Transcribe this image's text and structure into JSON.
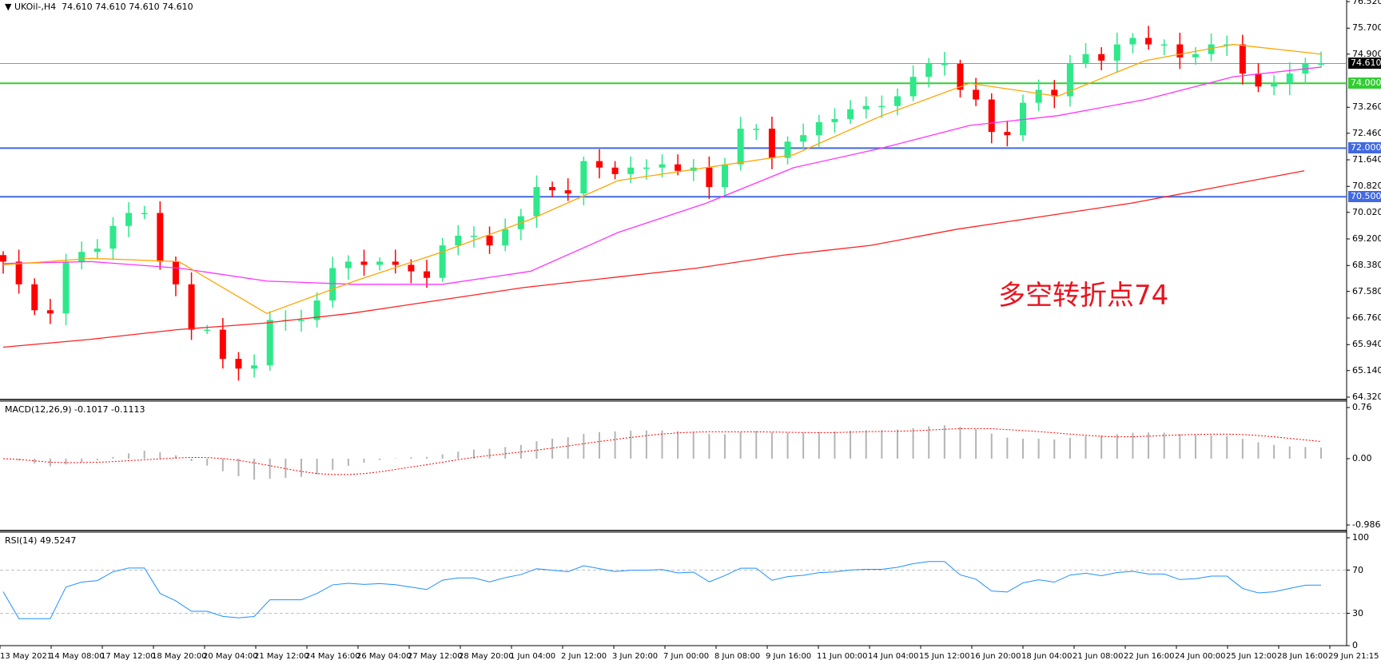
{
  "header": {
    "symbol": "UKOil-,H4",
    "ohlc": "74.610 74.610 74.610 74.610"
  },
  "annotation": "多空转折点74",
  "colors": {
    "bull": "#2ee88a",
    "bear": "#ff0000",
    "ma_fast": "#ffa500",
    "ma_mid": "#ff33ff",
    "ma_slow": "#ff2020",
    "level_green": "#32cd32",
    "level_blue": "#4169e1",
    "current": "#8899aa",
    "macd_hist": "#b4b4b4",
    "macd_signal": "#ff0000",
    "rsi": "#1e90ff"
  },
  "chart_data": [
    {
      "type": "candlestick",
      "title": "UKOil-,H4",
      "ylim": [
        64.32,
        76.52
      ],
      "y_ticks": [
        "76.520",
        "75.700",
        "74.900",
        "73.260",
        "72.460",
        "71.640",
        "70.820",
        "70.020",
        "69.200",
        "68.380",
        "67.580",
        "66.760",
        "65.940",
        "65.140",
        "64.320"
      ],
      "x_ticks": [
        "13 May 2021",
        "14 May 08:00",
        "17 May 12:00",
        "18 May 20:00",
        "20 May 04:00",
        "21 May 12:00",
        "24 May 16:00",
        "26 May 04:00",
        "27 May 12:00",
        "28 May 20:00",
        "1 Jun 04:00",
        "2 Jun 12:00",
        "3 Jun 20:00",
        "7 Jun 00:00",
        "8 Jun 08:00",
        "9 Jun 16:00",
        "11 Jun 00:00",
        "14 Jun 04:00",
        "15 Jun 12:00",
        "16 Jun 20:00",
        "18 Jun 04:00",
        "21 Jun 08:00",
        "22 Jun 16:00",
        "24 Jun 00:00",
        "25 Jun 12:00",
        "28 Jun 16:00",
        "29 Jun 21:15"
      ],
      "close": [
        68.5,
        67.8,
        67.0,
        66.9,
        68.5,
        68.8,
        68.9,
        69.6,
        70.0,
        70.0,
        68.5,
        67.8,
        66.4,
        66.4,
        65.5,
        65.2,
        65.3,
        66.7,
        66.7,
        66.7,
        67.3,
        68.3,
        68.5,
        68.4,
        68.5,
        68.4,
        68.2,
        68.0,
        69.0,
        69.3,
        69.3,
        69.0,
        69.5,
        69.9,
        70.8,
        70.7,
        70.6,
        71.6,
        71.4,
        71.2,
        71.4,
        71.4,
        71.5,
        71.3,
        71.4,
        70.8,
        71.5,
        72.6,
        72.6,
        71.7,
        72.2,
        72.4,
        72.8,
        72.9,
        73.2,
        73.3,
        73.3,
        73.6,
        74.2,
        74.6,
        74.6,
        73.8,
        73.5,
        72.5,
        72.4,
        73.4,
        73.8,
        73.6,
        74.6,
        74.9,
        74.7,
        75.2,
        75.4,
        75.2,
        75.2,
        74.8,
        74.9,
        75.2,
        75.2,
        74.3,
        73.9,
        74.0,
        74.3,
        74.6,
        74.61
      ],
      "ma_fast": [
        68.4,
        68.6,
        68.5,
        66.9,
        67.9,
        68.8,
        69.8,
        71.0,
        71.4,
        71.8,
        73.0,
        74.0,
        73.6,
        74.7,
        75.2,
        74.9
      ],
      "ma_mid": [
        68.44,
        68.5,
        68.3,
        67.9,
        67.8,
        67.8,
        68.2,
        69.4,
        70.3,
        71.4,
        72.0,
        72.7,
        73.0,
        73.5,
        74.2,
        74.5
      ],
      "ma_slow": [
        65.86,
        66.1,
        66.4,
        66.6,
        66.9,
        67.3,
        67.7,
        68.0,
        68.3,
        68.7,
        69.0,
        69.5,
        69.9,
        70.3,
        70.8,
        71.3
      ],
      "levels": [
        {
          "value": 74.61,
          "label": "74.610",
          "kind": "current"
        },
        {
          "value": 74.0,
          "label": "74.000",
          "kind": "green"
        },
        {
          "value": 72.0,
          "label": "72.000",
          "kind": "blue"
        },
        {
          "value": 70.5,
          "label": "70.500",
          "kind": "blue"
        }
      ]
    },
    {
      "type": "bar",
      "title": "MACD(12,26,9) -0.1017 -0.1113",
      "ylim": [
        -0.9862,
        0.76
      ],
      "y_ticks": [
        "0.76",
        "0.00",
        "-0.9862"
      ]
    },
    {
      "type": "line",
      "title": "RSI(14) 49.5247",
      "ylim": [
        0,
        100
      ],
      "y_ticks": [
        "100",
        "70",
        "30",
        "0"
      ],
      "levels": [
        70,
        30
      ]
    }
  ]
}
